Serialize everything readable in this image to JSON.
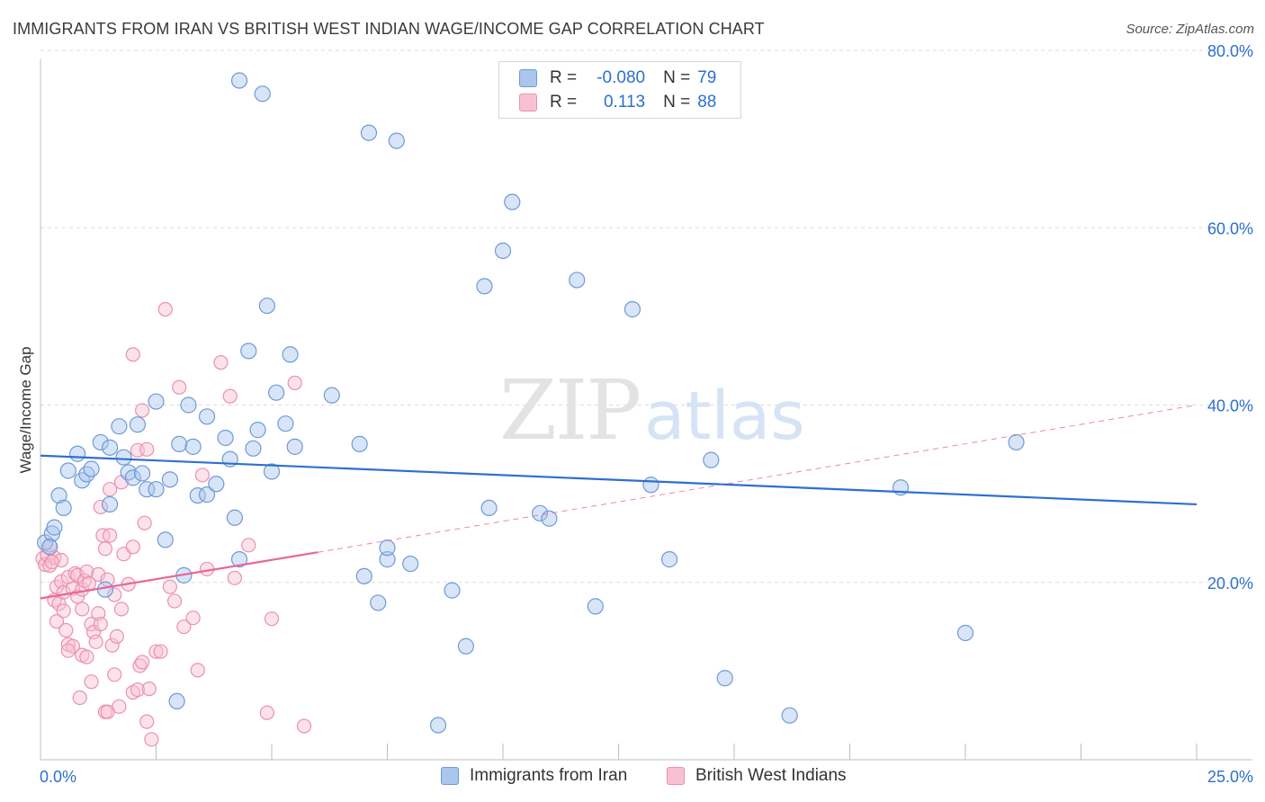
{
  "header": {
    "title": "IMMIGRANTS FROM IRAN VS BRITISH WEST INDIAN WAGE/INCOME GAP CORRELATION CHART",
    "source": "Source: ZipAtlas.com"
  },
  "legend": {
    "r_label": "R =",
    "n_label": "N =",
    "series": [
      {
        "r": "-0.080",
        "n": "79"
      },
      {
        "r": "0.113",
        "n": "88"
      }
    ]
  },
  "watermark": {
    "zip": "ZIP",
    "atlas": "atlas"
  },
  "colors": {
    "blue_fill": "#a9c6ee",
    "blue_stroke": "#6f9ad8",
    "blue_line": "#2d6fd0",
    "pink_fill": "#f8c1d2",
    "pink_stroke": "#ec8fae",
    "pink_line": "#e8669a",
    "tick_label": "#2d6fd0"
  },
  "chart_data": {
    "type": "scatter",
    "title": "IMMIGRANTS FROM IRAN VS BRITISH WEST INDIAN WAGE/INCOME GAP CORRELATION CHART",
    "xlabel": "",
    "ylabel": "Wage/Income Gap",
    "xlim": [
      0,
      25
    ],
    "ylim": [
      0,
      80
    ],
    "x_tick_labels": [
      {
        "value": 0,
        "label": "0.0%"
      },
      {
        "value": 25,
        "label": "25.0%"
      }
    ],
    "y_tick_labels": [
      {
        "value": 20,
        "label": "20.0%"
      },
      {
        "value": 40,
        "label": "40.0%"
      },
      {
        "value": 60,
        "label": "60.0%"
      },
      {
        "value": 80,
        "label": "80.0%"
      }
    ],
    "x_minor_ticks": [
      0,
      2.5,
      5,
      7.5,
      10,
      12.5,
      15,
      17.5,
      20,
      22.5,
      25
    ],
    "gridlines": [
      20,
      40,
      60,
      80
    ],
    "series": [
      {
        "name": "Immigrants from Iran",
        "color": "blue",
        "trend": {
          "x": [
            0,
            25
          ],
          "y": [
            34.3,
            28.8
          ],
          "dashed_extension": false
        },
        "points": [
          [
            0.1,
            24.5
          ],
          [
            0.25,
            25.5
          ],
          [
            0.3,
            26.2
          ],
          [
            0.4,
            29.8
          ],
          [
            0.5,
            28.4
          ],
          [
            0.6,
            32.6
          ],
          [
            0.8,
            34.5
          ],
          [
            0.9,
            31.5
          ],
          [
            1.0,
            32.2
          ],
          [
            1.1,
            32.8
          ],
          [
            1.3,
            35.8
          ],
          [
            1.5,
            35.2
          ],
          [
            1.4,
            19.2
          ],
          [
            1.5,
            28.8
          ],
          [
            1.7,
            37.6
          ],
          [
            1.8,
            34.1
          ],
          [
            1.9,
            32.4
          ],
          [
            2.0,
            31.8
          ],
          [
            2.1,
            37.8
          ],
          [
            2.2,
            32.3
          ],
          [
            2.3,
            30.5
          ],
          [
            2.5,
            30.5
          ],
          [
            2.5,
            40.4
          ],
          [
            2.7,
            24.8
          ],
          [
            2.8,
            31.6
          ],
          [
            2.95,
            6.6
          ],
          [
            3.0,
            35.6
          ],
          [
            3.1,
            20.8
          ],
          [
            3.2,
            40.0
          ],
          [
            3.3,
            35.3
          ],
          [
            3.4,
            29.8
          ],
          [
            3.6,
            29.9
          ],
          [
            3.6,
            38.7
          ],
          [
            3.8,
            31.1
          ],
          [
            4.0,
            36.3
          ],
          [
            4.1,
            33.9
          ],
          [
            4.2,
            27.3
          ],
          [
            4.3,
            22.6
          ],
          [
            4.5,
            46.1
          ],
          [
            4.6,
            35.1
          ],
          [
            4.7,
            37.2
          ],
          [
            4.8,
            75.1
          ],
          [
            4.9,
            51.2
          ],
          [
            5.0,
            32.5
          ],
          [
            5.1,
            41.4
          ],
          [
            5.3,
            37.9
          ],
          [
            5.4,
            45.7
          ],
          [
            5.5,
            35.3
          ],
          [
            4.3,
            76.6
          ],
          [
            6.3,
            41.1
          ],
          [
            6.9,
            35.6
          ],
          [
            7.0,
            20.7
          ],
          [
            7.1,
            70.7
          ],
          [
            7.3,
            17.7
          ],
          [
            7.5,
            22.6
          ],
          [
            7.5,
            23.9
          ],
          [
            7.7,
            69.8
          ],
          [
            8.0,
            22.1
          ],
          [
            8.6,
            3.9
          ],
          [
            8.9,
            19.1
          ],
          [
            9.2,
            12.8
          ],
          [
            9.6,
            53.4
          ],
          [
            9.7,
            28.4
          ],
          [
            10.0,
            57.4
          ],
          [
            10.2,
            62.9
          ],
          [
            10.8,
            27.8
          ],
          [
            11.0,
            27.2
          ],
          [
            11.6,
            54.1
          ],
          [
            12.0,
            17.3
          ],
          [
            12.8,
            50.8
          ],
          [
            13.2,
            31.0
          ],
          [
            13.6,
            22.6
          ],
          [
            14.5,
            33.8
          ],
          [
            14.8,
            9.2
          ],
          [
            16.2,
            5.0
          ],
          [
            18.6,
            30.7
          ],
          [
            20.0,
            14.3
          ],
          [
            21.1,
            35.8
          ],
          [
            0.2,
            24.0
          ]
        ]
      },
      {
        "name": "British West Indians",
        "color": "pink",
        "trend": {
          "x": [
            0,
            6
          ],
          "y": [
            18.2,
            23.4
          ],
          "dashed_to": [
            25,
            40.0
          ]
        },
        "points": [
          [
            0.05,
            22.7
          ],
          [
            0.1,
            22.0
          ],
          [
            0.15,
            23.1
          ],
          [
            0.2,
            24.2
          ],
          [
            0.2,
            21.9
          ],
          [
            0.3,
            18.0
          ],
          [
            0.3,
            22.8
          ],
          [
            0.35,
            19.5
          ],
          [
            0.35,
            15.6
          ],
          [
            0.4,
            17.6
          ],
          [
            0.45,
            20.1
          ],
          [
            0.45,
            22.5
          ],
          [
            0.5,
            18.9
          ],
          [
            0.5,
            16.8
          ],
          [
            0.55,
            14.6
          ],
          [
            0.6,
            20.6
          ],
          [
            0.6,
            13.0
          ],
          [
            0.7,
            19.3
          ],
          [
            0.7,
            12.8
          ],
          [
            0.75,
            21.0
          ],
          [
            0.8,
            18.4
          ],
          [
            0.8,
            20.8
          ],
          [
            0.85,
            7.0
          ],
          [
            0.9,
            19.2
          ],
          [
            0.9,
            11.8
          ],
          [
            0.95,
            20.2
          ],
          [
            1.0,
            11.6
          ],
          [
            1.0,
            21.2
          ],
          [
            1.05,
            19.9
          ],
          [
            1.1,
            15.3
          ],
          [
            1.1,
            8.8
          ],
          [
            1.15,
            14.4
          ],
          [
            1.2,
            13.3
          ],
          [
            1.25,
            16.5
          ],
          [
            1.3,
            15.3
          ],
          [
            1.3,
            28.5
          ],
          [
            1.35,
            25.3
          ],
          [
            1.4,
            23.8
          ],
          [
            1.4,
            5.4
          ],
          [
            1.45,
            5.4
          ],
          [
            1.5,
            30.5
          ],
          [
            1.5,
            25.3
          ],
          [
            1.55,
            12.9
          ],
          [
            1.6,
            18.6
          ],
          [
            1.6,
            9.6
          ],
          [
            1.65,
            13.9
          ],
          [
            1.7,
            6.0
          ],
          [
            1.75,
            17.0
          ],
          [
            1.75,
            31.3
          ],
          [
            1.8,
            23.2
          ],
          [
            2.0,
            7.6
          ],
          [
            2.0,
            45.7
          ],
          [
            2.0,
            24.0
          ],
          [
            2.1,
            34.9
          ],
          [
            2.1,
            7.9
          ],
          [
            2.15,
            10.6
          ],
          [
            2.2,
            11.0
          ],
          [
            2.2,
            39.4
          ],
          [
            2.25,
            26.7
          ],
          [
            2.3,
            4.3
          ],
          [
            2.3,
            35.0
          ],
          [
            2.35,
            8.0
          ],
          [
            2.4,
            2.3
          ],
          [
            2.5,
            12.2
          ],
          [
            2.6,
            12.2
          ],
          [
            2.7,
            50.8
          ],
          [
            2.9,
            17.9
          ],
          [
            3.0,
            42.0
          ],
          [
            3.1,
            15.0
          ],
          [
            3.3,
            16.0
          ],
          [
            3.4,
            10.1
          ],
          [
            3.5,
            32.1
          ],
          [
            3.6,
            21.5
          ],
          [
            3.9,
            44.8
          ],
          [
            4.1,
            41.0
          ],
          [
            4.2,
            20.5
          ],
          [
            4.5,
            24.2
          ],
          [
            4.9,
            5.3
          ],
          [
            5.0,
            15.9
          ],
          [
            5.5,
            42.5
          ],
          [
            5.7,
            3.8
          ],
          [
            2.8,
            19.5
          ],
          [
            1.9,
            19.8
          ],
          [
            0.6,
            12.3
          ],
          [
            0.25,
            22.3
          ],
          [
            1.25,
            20.9
          ],
          [
            0.9,
            17.0
          ],
          [
            1.45,
            20.3
          ]
        ]
      }
    ]
  }
}
